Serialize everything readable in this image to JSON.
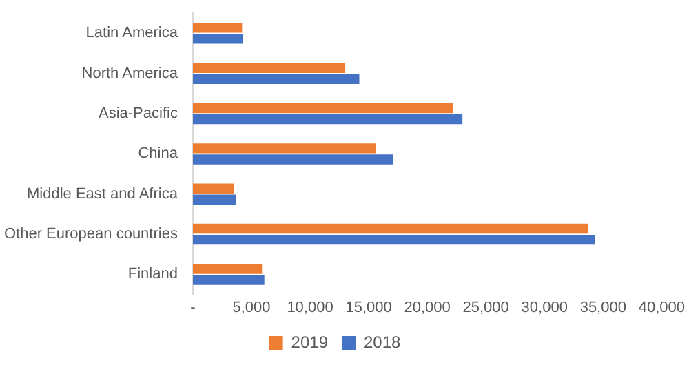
{
  "chart_data": {
    "type": "bar",
    "orientation": "horizontal",
    "categories": [
      "Latin America",
      "North America",
      "Asia-Pacific",
      "China",
      "Middle East and Africa",
      "Other European countries",
      "Finland"
    ],
    "series": [
      {
        "name": "2019",
        "color": "#ed7d31",
        "values": [
          4200,
          13000,
          22200,
          15600,
          3500,
          33700,
          5900
        ]
      },
      {
        "name": "2018",
        "color": "#4472c4",
        "values": [
          4300,
          14200,
          23000,
          17100,
          3700,
          34300,
          6100
        ]
      }
    ],
    "xlim": [
      0,
      40000
    ],
    "xticks": [
      {
        "value": 0,
        "label": "-"
      },
      {
        "value": 5000,
        "label": "5,000"
      },
      {
        "value": 10000,
        "label": "10,000"
      },
      {
        "value": 15000,
        "label": "15,000"
      },
      {
        "value": 20000,
        "label": "20,000"
      },
      {
        "value": 25000,
        "label": "25,000"
      },
      {
        "value": 30000,
        "label": "30,000"
      },
      {
        "value": 35000,
        "label": "35,000"
      },
      {
        "value": 40000,
        "label": "40,000"
      }
    ],
    "grid": false,
    "legend": "bottom"
  }
}
